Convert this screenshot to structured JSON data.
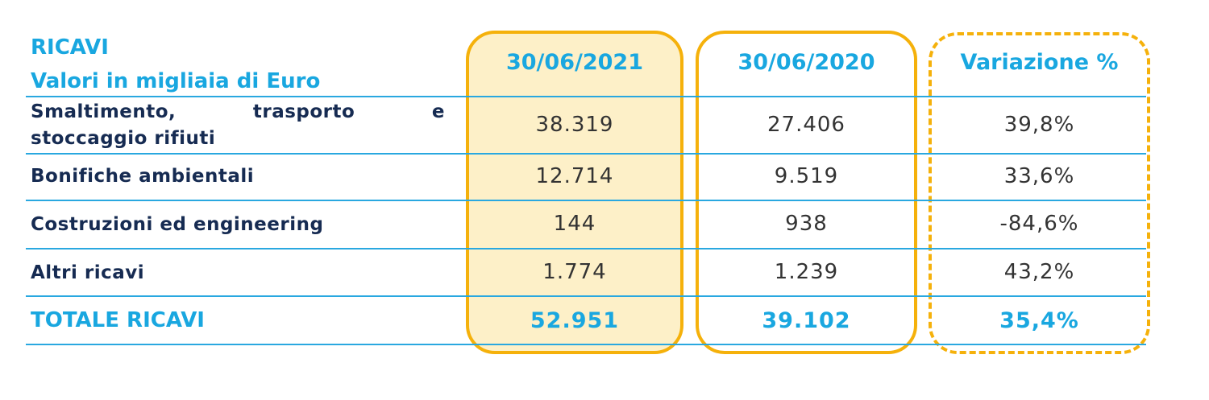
{
  "header": {
    "title": "RICAVI",
    "subtitle": "Valori in migliaia di Euro"
  },
  "columns": [
    "30/06/2021",
    "30/06/2020",
    "Variazione %"
  ],
  "rows": [
    {
      "label_line1_words": [
        "Smaltimento,",
        "trasporto",
        "e"
      ],
      "label_line2": "stoccaggio rifiuti",
      "values": [
        "38.319",
        "27.406",
        "39,8%"
      ]
    },
    {
      "label": "Bonifiche ambientali",
      "values": [
        "12.714",
        "9.519",
        "33,6%"
      ]
    },
    {
      "label": "Costruzioni ed engineering",
      "values": [
        "144",
        "938",
        "-84,6%"
      ]
    },
    {
      "label": "Altri ricavi",
      "values": [
        "1.774",
        "1.239",
        "43,2%"
      ]
    }
  ],
  "total": {
    "label": "TOTALE RICAVI",
    "values": [
      "52.951",
      "39.102",
      "35,4%"
    ]
  },
  "colors": {
    "accent": "#19a7e0",
    "highlight_border": "#f5b10b",
    "highlight_fill": "#fdf0c8",
    "label_text": "#162b52"
  }
}
